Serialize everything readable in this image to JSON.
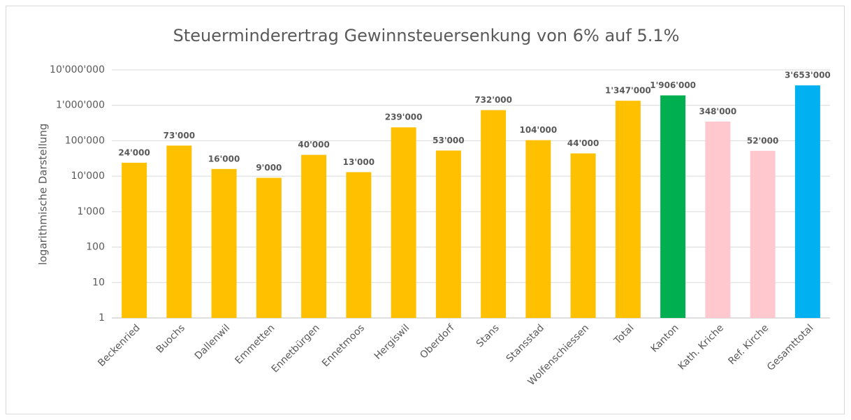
{
  "chart_data": {
    "type": "bar",
    "title": "Steuerminderertrag Gewinnsteuersenkung von 6% auf 5.1%",
    "y_label": "logarithmische Darstellung",
    "categories": [
      "Beckenried",
      "Buochs",
      "Dallenwil",
      "Emmetten",
      "Ennetbürgen",
      "Ennetmoos",
      "Hergiswil",
      "Oberdorf",
      "Stans",
      "Stansstad",
      "Wolfenschiessen",
      "Total",
      "Kanton",
      "Kath. Kriche",
      "Ref. Kirche",
      "Gesamttotal"
    ],
    "values": [
      24000,
      73000,
      16000,
      9000,
      40000,
      13000,
      239000,
      53000,
      732000,
      104000,
      44000,
      1347000,
      1906000,
      348000,
      52000,
      3653000
    ],
    "value_labels": [
      "24'000",
      "73'000",
      "16'000",
      "9'000",
      "40'000",
      "13'000",
      "239'000",
      "53'000",
      "732'000",
      "104'000",
      "44'000",
      "1'347'000",
      "1'906'000",
      "348'000",
      "52'000",
      "3'653'000"
    ],
    "colors": [
      "#FFC000",
      "#FFC000",
      "#FFC000",
      "#FFC000",
      "#FFC000",
      "#FFC000",
      "#FFC000",
      "#FFC000",
      "#FFC000",
      "#FFC000",
      "#FFC000",
      "#FFC000",
      "#00B050",
      "#FFC7CE",
      "#FFC7CE",
      "#00B0F0"
    ],
    "log_scale": true,
    "ylim": [
      1,
      10000000
    ],
    "yticks": [
      1,
      10,
      100,
      {
        "value": 1000,
        "label": "1'000"
      },
      {
        "value": 10000,
        "label": "10'000"
      },
      {
        "value": 100000,
        "label": "100'000"
      },
      {
        "value": 1000000,
        "label": "1'000'000"
      },
      {
        "value": 10000000,
        "label": "10'000'000"
      }
    ],
    "grid": true
  }
}
